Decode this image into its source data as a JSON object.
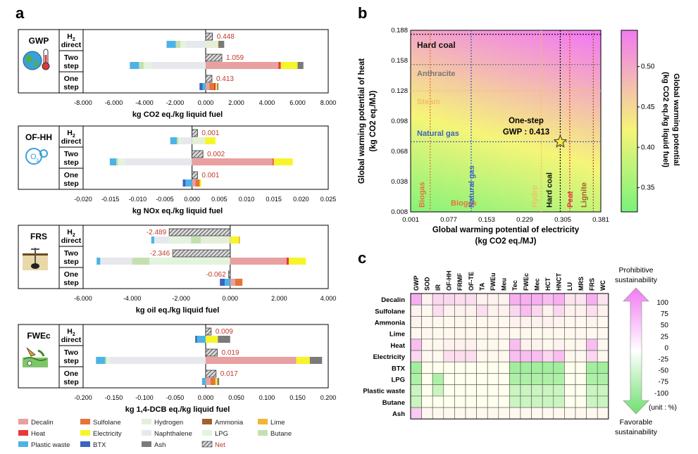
{
  "panel_labels": {
    "a": "a",
    "b": "b",
    "c": "c"
  },
  "colors": {
    "Decalin": "#e8a0a0",
    "Sulfolane": "#e4743a",
    "Hydrogen": "#e5efd8",
    "Ammonia": "#a0612b",
    "Lime": "#f2b632",
    "Heat": "#e8383a",
    "Electricity": "#f5f52a",
    "Naphthalene": "#e6e8ee",
    "LPG": "#e4f3dd",
    "Butane": "#c5e0b0",
    "Plastic waste": "#4db3e6",
    "BTX": "#3a64c0",
    "Ash": "#7a7a7a",
    "Net": "#9a9a9a",
    "net_text": "#c0392b",
    "heat_hi": "#f27af2",
    "heat_mid": "#f5f578",
    "heat_lo": "#7af27a"
  },
  "legend": {
    "items": [
      {
        "label": "Decalin",
        "key": "Decalin",
        "style": "fill"
      },
      {
        "label": "Sulfolane",
        "key": "Sulfolane",
        "style": "fill"
      },
      {
        "label": "Hydrogen",
        "key": "Hydrogen",
        "style": "fill"
      },
      {
        "label": "Ammonia",
        "key": "Ammonia",
        "style": "fill"
      },
      {
        "label": "Lime",
        "key": "Lime",
        "style": "fill"
      },
      {
        "label": "Heat",
        "key": "Heat",
        "style": "fill"
      },
      {
        "label": "Electricity",
        "key": "Electricity",
        "style": "fill"
      },
      {
        "label": "Naphthalene",
        "key": "Naphthalene",
        "style": "fill"
      },
      {
        "label": "LPG",
        "key": "LPG",
        "style": "fill"
      },
      {
        "label": "Butane",
        "key": "Butane",
        "style": "fill"
      },
      {
        "label": "Plastic waste",
        "key": "Plastic waste",
        "style": "fill"
      },
      {
        "label": "BTX",
        "key": "BTX",
        "style": "fill"
      },
      {
        "label": "Ash",
        "key": "Ash",
        "style": "fill"
      },
      {
        "label": "Net",
        "key": "Net",
        "style": "hatch"
      }
    ]
  },
  "chart_data": [
    {
      "type": "bar",
      "panel": "a",
      "name": "GWP",
      "icon": "globe-thermometer-icon",
      "xlabel": "kg CO2 eq./kg liquid fuel",
      "xlim": [
        -8000,
        8000
      ],
      "ticks": [
        -8000,
        -6000,
        -4000,
        -2000,
        0,
        2000,
        4000,
        6000,
        8000
      ],
      "tick_labels": [
        "-8.000",
        "-6.000",
        "-4.000",
        "-2.000",
        "0.000",
        "2.000",
        "4.000",
        "6.000",
        "8.000"
      ],
      "rows": [
        {
          "label": "H2 direct",
          "net": 448,
          "net_label": "0.448",
          "segments": [
            {
              "k": "Hydrogen",
              "v": 800
            },
            {
              "k": "Electricity",
              "v": 30
            },
            {
              "k": "Ash",
              "v": 380
            },
            {
              "k": "Naphthalene",
              "v": -1300
            },
            {
              "k": "LPG",
              "v": -350
            },
            {
              "k": "Butane",
              "v": -300
            },
            {
              "k": "Plastic waste",
              "v": -600
            }
          ]
        },
        {
          "label": "Two step",
          "net": 1059,
          "net_label": "1.059",
          "segments": [
            {
              "k": "Decalin",
              "v": 4750
            },
            {
              "k": "Heat",
              "v": 150
            },
            {
              "k": "Electricity",
              "v": 1100
            },
            {
              "k": "Ash",
              "v": 380
            },
            {
              "k": "Naphthalene",
              "v": -3500
            },
            {
              "k": "LPG",
              "v": -550
            },
            {
              "k": "Butane",
              "v": -300
            },
            {
              "k": "Plastic waste",
              "v": -600
            }
          ]
        },
        {
          "label": "One step",
          "net": 413,
          "net_label": "0.413",
          "segments": [
            {
              "k": "Decalin",
              "v": 250
            },
            {
              "k": "Sulfolane",
              "v": 300
            },
            {
              "k": "Heat",
              "v": 100
            },
            {
              "k": "Electricity",
              "v": 100
            },
            {
              "k": "Ash",
              "v": 80
            },
            {
              "k": "Plastic waste",
              "v": -200
            },
            {
              "k": "BTX",
              "v": -200
            }
          ]
        }
      ]
    },
    {
      "type": "bar",
      "panel": "a",
      "name": "OF-HH",
      "icon": "ozone-molecule-icon",
      "xlabel": "kg NOx eq./kg liquid fuel",
      "xlim": [
        -0.02,
        0.025
      ],
      "ticks": [
        -0.02,
        -0.015,
        -0.01,
        -0.005,
        0.0,
        0.005,
        0.01,
        0.015,
        0.02,
        0.025
      ],
      "tick_labels": [
        "-0.020",
        "-0.015",
        "-0.010",
        "-0.005",
        "0.000",
        "0.005",
        "0.010",
        "0.015",
        "0.020",
        "0.025"
      ],
      "rows": [
        {
          "label": "H2 direct",
          "net": 0.001,
          "net_label": "0.001",
          "segments": [
            {
              "k": "Hydrogen",
              "v": 0.0024
            },
            {
              "k": "Electricity",
              "v": 0.0019
            },
            {
              "k": "Naphthalene",
              "v": -0.002
            },
            {
              "k": "LPG",
              "v": -0.0005
            },
            {
              "k": "Butane",
              "v": -0.0003
            },
            {
              "k": "Plastic waste",
              "v": -0.0012
            }
          ]
        },
        {
          "label": "Two step",
          "net": 0.002,
          "net_label": "0.002",
          "segments": [
            {
              "k": "Decalin",
              "v": 0.0148
            },
            {
              "k": "Heat",
              "v": 0.0002
            },
            {
              "k": "Electricity",
              "v": 0.0035
            },
            {
              "k": "Naphthalene",
              "v": -0.0123
            },
            {
              "k": "LPG",
              "v": -0.0013
            },
            {
              "k": "Butane",
              "v": -0.0003
            },
            {
              "k": "Plastic waste",
              "v": -0.0012
            }
          ]
        },
        {
          "label": "One step",
          "net": 0.001,
          "net_label": "0.001",
          "segments": [
            {
              "k": "Decalin",
              "v": 0.0006
            },
            {
              "k": "Sulfolane",
              "v": 0.0008
            },
            {
              "k": "Electricity",
              "v": 0.0003
            },
            {
              "k": "Plastic waste",
              "v": -0.0012
            },
            {
              "k": "BTX",
              "v": -0.0005
            }
          ]
        }
      ]
    },
    {
      "type": "bar",
      "panel": "a",
      "name": "FRS",
      "icon": "oil-drill-icon",
      "xlabel": "kg oil eq./kg liquid fuel",
      "xlim": [
        -6000,
        4000
      ],
      "ticks": [
        -6000,
        -4000,
        -2000,
        0,
        2000,
        4000
      ],
      "tick_labels": [
        "-6.000",
        "-4.000",
        "-2.000",
        "0.000",
        "2.000",
        "4.000"
      ],
      "rows": [
        {
          "label": "H2 direct",
          "net": -2489,
          "net_label": "-2.489",
          "segments": [
            {
              "k": "Electricity",
              "v": 350
            },
            {
              "k": "Lime",
              "v": 50
            },
            {
              "k": "Hydrogen",
              "v": -1200
            },
            {
              "k": "Butane",
              "v": -400
            },
            {
              "k": "LPG",
              "v": -900
            },
            {
              "k": "Naphthalene",
              "v": -600
            },
            {
              "k": "Plastic waste",
              "v": -120
            }
          ]
        },
        {
          "label": "Two step",
          "net": -2346,
          "net_label": "-2.346",
          "segments": [
            {
              "k": "Decalin",
              "v": 2300
            },
            {
              "k": "Heat",
              "v": 90
            },
            {
              "k": "Electricity",
              "v": 700
            },
            {
              "k": "LPG",
              "v": -3300
            },
            {
              "k": "Butane",
              "v": -700
            },
            {
              "k": "Naphthalene",
              "v": -1300
            },
            {
              "k": "Plastic waste",
              "v": -150
            }
          ]
        },
        {
          "label": "One step",
          "net": -62,
          "net_label": "-0.062",
          "segments": [
            {
              "k": "Decalin",
              "v": 200
            },
            {
              "k": "Sulfolane",
              "v": 300
            },
            {
              "k": "Plastic waste",
              "v": -220
            },
            {
              "k": "BTX",
              "v": -200
            }
          ]
        }
      ]
    },
    {
      "type": "bar",
      "panel": "a",
      "name": "FWEc",
      "icon": "water-toxicity-icon",
      "xlabel": "kg 1,4-DCB eq./kg liquid fuel",
      "xlim": [
        -0.2,
        0.2
      ],
      "ticks": [
        -0.2,
        -0.15,
        -0.1,
        -0.05,
        0.0,
        0.05,
        0.1,
        0.15,
        0.2
      ],
      "tick_labels": [
        "-0.200",
        "-0.150",
        "-0.100",
        "-0.050",
        "0.000",
        "0.050",
        "0.100",
        "0.150",
        "0.200"
      ],
      "rows": [
        {
          "label": "H2 direct",
          "net": 0.009,
          "net_label": "0.009",
          "segments": [
            {
              "k": "Electricity",
              "v": 0.02
            },
            {
              "k": "Ash",
              "v": 0.02
            },
            {
              "k": "Plastic waste",
              "v": -0.014
            },
            {
              "k": "BTX",
              "v": -0.003
            }
          ]
        },
        {
          "label": "Two step",
          "net": 0.019,
          "net_label": "0.019",
          "segments": [
            {
              "k": "Decalin",
              "v": 0.148
            },
            {
              "k": "Electricity",
              "v": 0.022
            },
            {
              "k": "Ash",
              "v": 0.02
            },
            {
              "k": "Naphthalene",
              "v": -0.157
            },
            {
              "k": "LPG",
              "v": -0.005
            },
            {
              "k": "Butane",
              "v": -0.002
            },
            {
              "k": "Plastic waste",
              "v": -0.015
            }
          ]
        },
        {
          "label": "One step",
          "net": 0.017,
          "net_label": "0.017",
          "segments": [
            {
              "k": "Decalin",
              "v": 0.008
            },
            {
              "k": "Sulfolane",
              "v": 0.008
            },
            {
              "k": "Electricity",
              "v": 0.003
            },
            {
              "k": "Ash",
              "v": 0.003
            },
            {
              "k": "Plastic waste",
              "v": -0.006
            }
          ]
        }
      ]
    },
    {
      "type": "heatmap",
      "panel": "b",
      "xlabel": "Global warming potential of electricity",
      "xlabel_unit": "(kg CO2 eq./MJ)",
      "ylabel": "Global warming potential of heat",
      "ylabel_unit": "(kg CO2 eq./MJ)",
      "xlim": [
        0.001,
        0.381
      ],
      "ylim": [
        0.008,
        0.188
      ],
      "xticks": [
        0.001,
        0.077,
        0.153,
        0.229,
        0.305,
        0.381
      ],
      "xtick_labels": [
        "0.001",
        "0.077",
        "0.153",
        "0.229",
        "0.305",
        "0.381"
      ],
      "yticks": [
        0.008,
        0.038,
        0.068,
        0.098,
        0.128,
        0.158,
        0.188
      ],
      "ytick_labels": [
        "0.008",
        "0.038",
        "0.068",
        "0.098",
        "0.128",
        "0.158",
        "0.188"
      ],
      "colorbar": {
        "label": "Global warming potential",
        "label_unit": "(kg CO2 eq./kg liquid fuel)",
        "ticks": [
          0.35,
          0.4,
          0.45,
          0.5
        ],
        "tick_labels": [
          "0.35",
          "0.40",
          "0.45",
          "0.50"
        ],
        "range": [
          0.32,
          0.545
        ]
      },
      "heat_lines": [
        {
          "label": "Hard coal",
          "y": 0.184,
          "color": "#111111",
          "text_color": "#111111"
        },
        {
          "label": "Anthracite",
          "y": 0.154,
          "color": "#777777",
          "text_color": "#777777"
        },
        {
          "label": "Steam",
          "y": 0.128,
          "color": "#f0c060",
          "text_color": "#f0c060"
        },
        {
          "label": "Natural gas",
          "y": 0.0775,
          "color": "#3a64c0",
          "text_color": "#3a64c0"
        },
        {
          "label": "Biogas",
          "y": 0.008,
          "color": "#e4743a",
          "text_color": "#e4743a"
        }
      ],
      "elec_lines": [
        {
          "label": "Biogas",
          "x": 0.04,
          "color": "#e4743a",
          "text_color": "#e4743a"
        },
        {
          "label": "Natural gas",
          "x": 0.122,
          "color": "#3a64c0",
          "text_color": "#3a64c0"
        },
        {
          "label": "Hydro",
          "x": 0.262,
          "color": "#f0c060",
          "text_color": "#f0c060"
        },
        {
          "label": "Hard coal",
          "x": 0.3,
          "color": "#111111",
          "text_color": "#111111"
        },
        {
          "label": "Peat",
          "x": 0.319,
          "color": "#e8383a",
          "text_color": "#e8383a"
        },
        {
          "label": "Lignite",
          "x": 0.366,
          "color": "#a0612b",
          "text_color": "#a0612b"
        }
      ],
      "point": {
        "label": "One-step",
        "value_label": "GWP : 0.413",
        "x": 0.3,
        "y": 0.0775
      }
    },
    {
      "type": "table",
      "panel": "c",
      "columns": [
        "GWP",
        "SOD",
        "IR",
        "OF-HH",
        "FRMF",
        "OF-TE",
        "TA",
        "FWEu",
        "Meu",
        "Tec",
        "FWEc",
        "Mec",
        "HCT",
        "HNCT",
        "LU",
        "MRS",
        "FRS",
        "WC"
      ],
      "rows": [
        "Decalin",
        "Sulfolane",
        "Ammonia",
        "Lime",
        "Heat",
        "Electricity",
        "BTX",
        "LPG",
        "Plastic waste",
        "Butane",
        "Ash"
      ],
      "values": [
        [
          60,
          10,
          30,
          30,
          25,
          25,
          10,
          10,
          10,
          60,
          60,
          60,
          50,
          60,
          20,
          20,
          60,
          20
        ],
        [
          10,
          5,
          25,
          10,
          10,
          10,
          25,
          10,
          10,
          30,
          50,
          30,
          10,
          30,
          10,
          10,
          25,
          10
        ],
        [
          10,
          5,
          5,
          5,
          5,
          5,
          5,
          5,
          5,
          10,
          10,
          10,
          10,
          10,
          5,
          5,
          10,
          5
        ],
        [
          5,
          5,
          5,
          5,
          5,
          5,
          5,
          5,
          5,
          5,
          5,
          5,
          5,
          5,
          5,
          5,
          5,
          5
        ],
        [
          50,
          5,
          5,
          10,
          10,
          10,
          5,
          5,
          5,
          50,
          10,
          10,
          5,
          10,
          5,
          5,
          50,
          5
        ],
        [
          30,
          5,
          5,
          25,
          25,
          25,
          5,
          5,
          5,
          50,
          50,
          50,
          30,
          50,
          5,
          5,
          30,
          5
        ],
        [
          -70,
          0,
          0,
          0,
          0,
          0,
          0,
          0,
          0,
          -70,
          -70,
          -70,
          -70,
          -70,
          0,
          0,
          -70,
          -70
        ],
        [
          -60,
          0,
          -60,
          0,
          0,
          0,
          0,
          0,
          0,
          -60,
          -60,
          -60,
          -60,
          -60,
          0,
          0,
          -60,
          -60
        ],
        [
          -40,
          0,
          -40,
          0,
          0,
          0,
          0,
          0,
          0,
          -40,
          -40,
          -40,
          -40,
          -40,
          0,
          0,
          -40,
          -40
        ],
        [
          -40,
          0,
          0,
          0,
          0,
          0,
          0,
          0,
          0,
          -40,
          -40,
          -40,
          -40,
          -40,
          0,
          0,
          -40,
          -40
        ],
        [
          40,
          5,
          5,
          5,
          5,
          5,
          5,
          5,
          5,
          5,
          5,
          5,
          5,
          5,
          5,
          5,
          5,
          5
        ]
      ],
      "scale": {
        "ticks": [
          100,
          75,
          50,
          25,
          0,
          -25,
          -50,
          -75,
          -100
        ],
        "tick_labels": [
          "100",
          "75",
          "50",
          "25",
          "0",
          "-25",
          "-50",
          "-75",
          "-100"
        ],
        "top_label_1": "Prohibitive",
        "top_label_2": "sustainability",
        "bottom_label_1": "Favorable",
        "bottom_label_2": "sustainability",
        "unit": "(unit : %)"
      }
    }
  ]
}
